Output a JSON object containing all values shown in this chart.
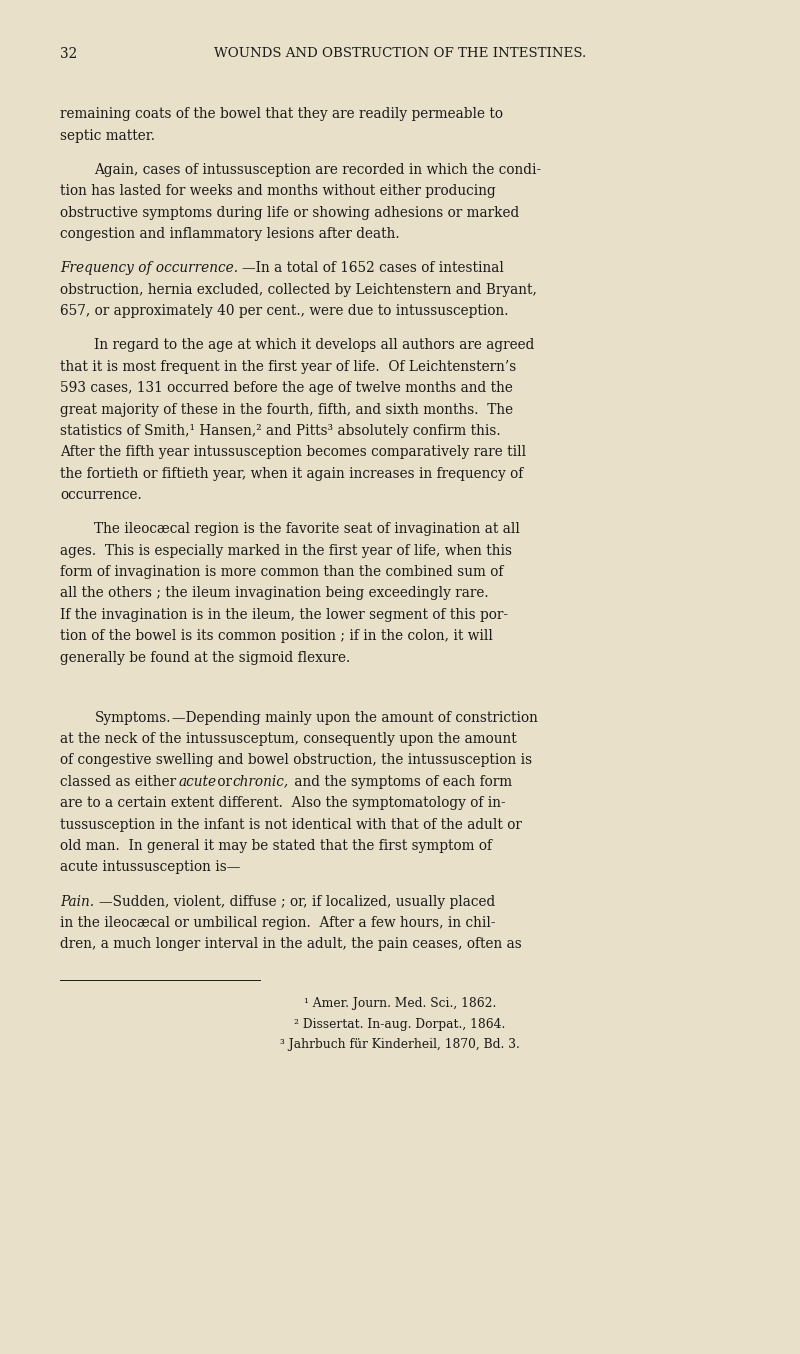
{
  "bg_color": "#e8e0c8",
  "text_color": "#1a1a1a",
  "page_width": 8.0,
  "page_height": 13.54,
  "dpi": 100,
  "header_page_num": "32",
  "header_title": "WOUNDS AND OBSTRUCTION OF THE INTESTINES.",
  "footnotes": [
    "¹ Amer. Journ. Med. Sci., 1862.",
    "² Dissertat. In-aug. Dorpat., 1864.",
    "³ Jahrbuch für Kinderheil, 1870, Bd. 3."
  ]
}
